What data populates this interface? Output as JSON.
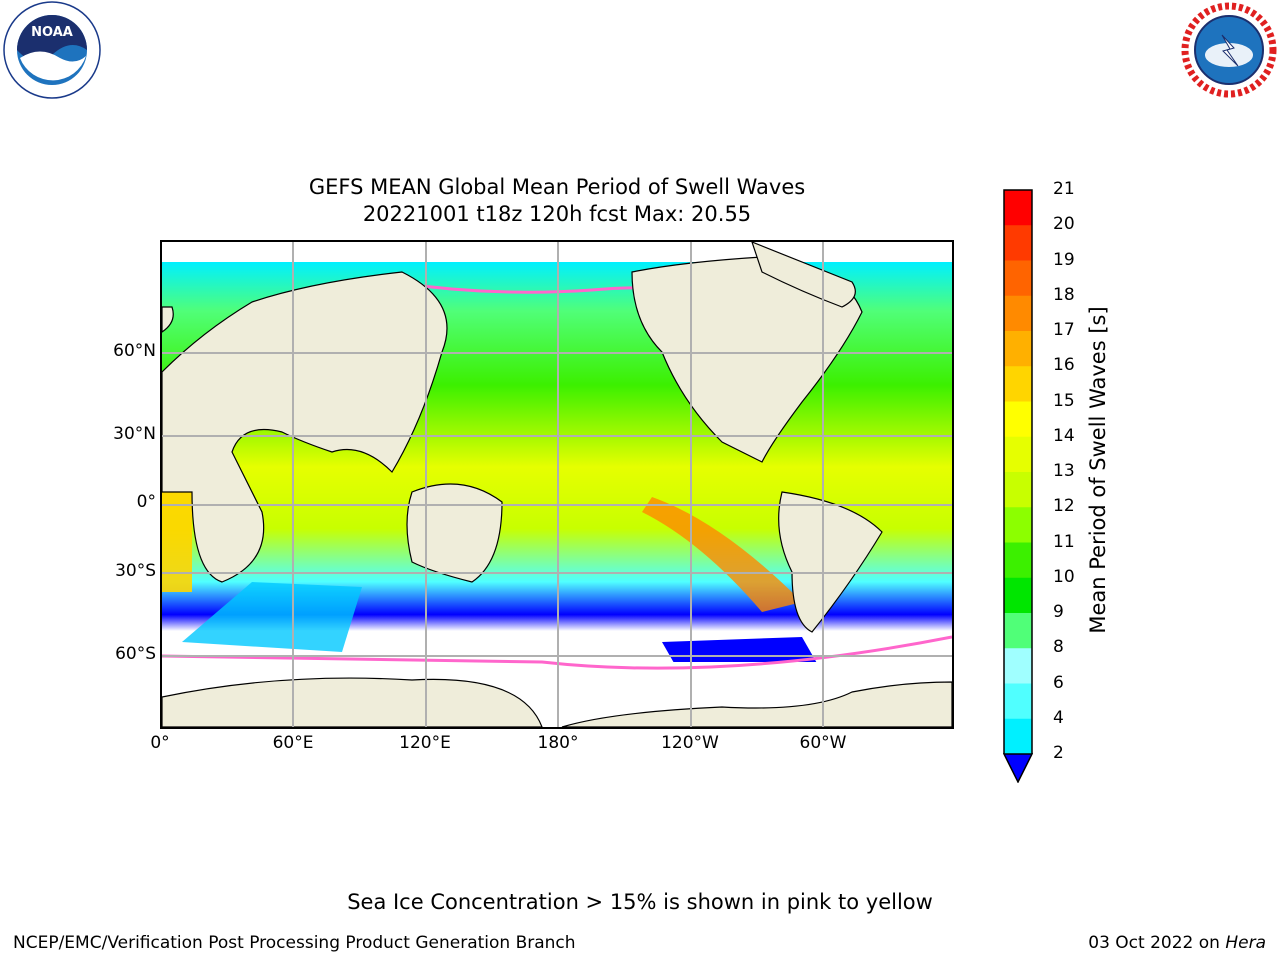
{
  "title": {
    "line1": "GEFS MEAN Global Mean Period of Swell Waves",
    "line2": "20221001 t18z 120h fcst   Max: 20.55"
  },
  "logos": {
    "left": {
      "text": "NOAA",
      "icon": "noaa-logo"
    },
    "right": {
      "text": "NATIONAL WEATHER SERVICE",
      "icon": "nws-logo"
    }
  },
  "map": {
    "projection": "cylindrical",
    "y_ticks": [
      "60°N",
      "30°N",
      "0°",
      "30°S",
      "60°S"
    ],
    "x_ticks": [
      "0°",
      "60°E",
      "120°E",
      "180°",
      "120°W",
      "60°W"
    ],
    "land_color": "#efedda",
    "grid": true
  },
  "colorbar": {
    "label": "Mean Period of Swell Waves [s]",
    "ticks": [
      "21",
      "20",
      "19",
      "18",
      "17",
      "16",
      "15",
      "14",
      "13",
      "12",
      "11",
      "10",
      "9",
      "8",
      "6",
      "4",
      "2"
    ],
    "colors": [
      "#ff0000",
      "#ff3a00",
      "#ff6400",
      "#ff8a00",
      "#ffb000",
      "#ffd500",
      "#ffff00",
      "#e6ff00",
      "#c8ff00",
      "#8cff00",
      "#3cf000",
      "#00e600",
      "#50ff78",
      "#a0ffff",
      "#50ffff",
      "#00f0ff",
      "#00c8ff",
      "#0078ff",
      "#0000ff"
    ],
    "extend": "min"
  },
  "note": "Sea Ice Concentration > 15% is shown in pink to yellow",
  "footer": {
    "left": "NCEP/EMC/Verification Post Processing Product Generation Branch",
    "right_date": "03 Oct 2022 on",
    "right_machine": "Hera"
  }
}
